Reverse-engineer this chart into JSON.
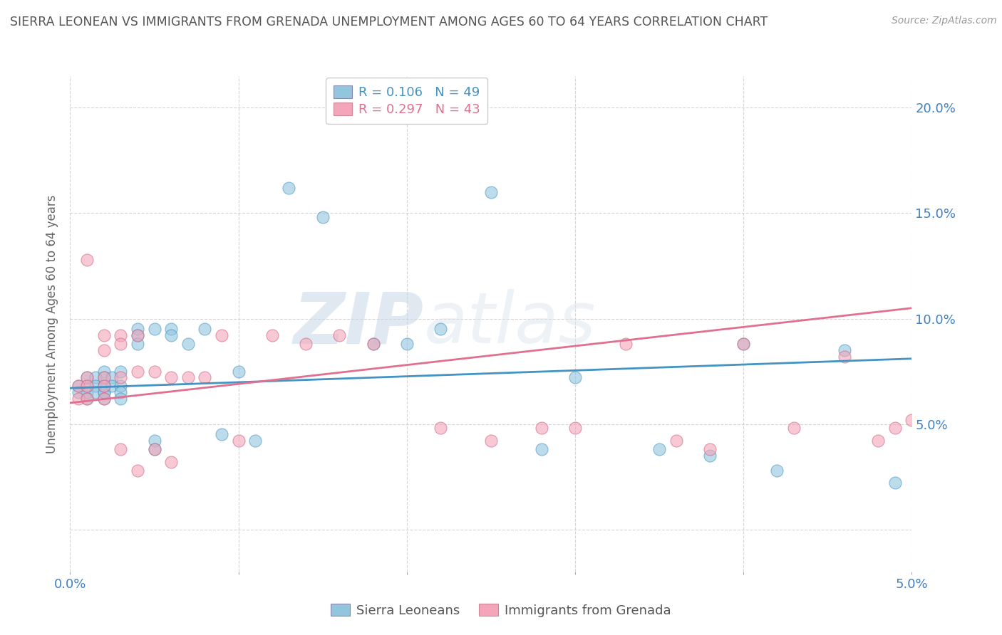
{
  "title": "SIERRA LEONEAN VS IMMIGRANTS FROM GRENADA UNEMPLOYMENT AMONG AGES 60 TO 64 YEARS CORRELATION CHART",
  "source": "Source: ZipAtlas.com",
  "ylabel": "Unemployment Among Ages 60 to 64 years",
  "xlim": [
    0.0,
    0.05
  ],
  "ylim": [
    -0.02,
    0.215
  ],
  "x_ticks": [
    0.0,
    0.01,
    0.02,
    0.03,
    0.04,
    0.05
  ],
  "x_tick_labels": [
    "0.0%",
    "",
    "",
    "",
    "",
    "5.0%"
  ],
  "y_ticks": [
    0.0,
    0.05,
    0.1,
    0.15,
    0.2
  ],
  "y_tick_labels": [
    "",
    "5.0%",
    "10.0%",
    "15.0%",
    "20.0%"
  ],
  "blue_R": 0.106,
  "blue_N": 49,
  "pink_R": 0.297,
  "pink_N": 43,
  "blue_color": "#92c5de",
  "pink_color": "#f4a6b8",
  "blue_line_color": "#4393c3",
  "pink_line_color": "#e07090",
  "legend_label_blue": "Sierra Leoneans",
  "legend_label_pink": "Immigrants from Grenada",
  "blue_scatter_x": [
    0.0005,
    0.0005,
    0.001,
    0.001,
    0.001,
    0.001,
    0.0015,
    0.0015,
    0.0015,
    0.002,
    0.002,
    0.002,
    0.002,
    0.002,
    0.002,
    0.002,
    0.0025,
    0.0025,
    0.003,
    0.003,
    0.003,
    0.003,
    0.004,
    0.004,
    0.004,
    0.005,
    0.005,
    0.005,
    0.006,
    0.006,
    0.007,
    0.008,
    0.009,
    0.01,
    0.011,
    0.013,
    0.015,
    0.018,
    0.02,
    0.022,
    0.025,
    0.028,
    0.03,
    0.035,
    0.038,
    0.04,
    0.042,
    0.046,
    0.049
  ],
  "blue_scatter_y": [
    0.068,
    0.065,
    0.072,
    0.068,
    0.065,
    0.062,
    0.072,
    0.068,
    0.065,
    0.075,
    0.072,
    0.068,
    0.065,
    0.062,
    0.068,
    0.065,
    0.072,
    0.068,
    0.075,
    0.068,
    0.065,
    0.062,
    0.095,
    0.092,
    0.088,
    0.095,
    0.042,
    0.038,
    0.095,
    0.092,
    0.088,
    0.095,
    0.045,
    0.075,
    0.042,
    0.162,
    0.148,
    0.088,
    0.088,
    0.095,
    0.16,
    0.038,
    0.072,
    0.038,
    0.035,
    0.088,
    0.028,
    0.085,
    0.022
  ],
  "pink_scatter_x": [
    0.0005,
    0.0005,
    0.001,
    0.001,
    0.001,
    0.001,
    0.002,
    0.002,
    0.002,
    0.002,
    0.002,
    0.003,
    0.003,
    0.003,
    0.003,
    0.004,
    0.004,
    0.004,
    0.005,
    0.005,
    0.006,
    0.006,
    0.007,
    0.008,
    0.009,
    0.01,
    0.012,
    0.014,
    0.016,
    0.018,
    0.022,
    0.025,
    0.028,
    0.03,
    0.033,
    0.036,
    0.038,
    0.04,
    0.043,
    0.046,
    0.048,
    0.049,
    0.05
  ],
  "pink_scatter_y": [
    0.068,
    0.062,
    0.128,
    0.072,
    0.068,
    0.062,
    0.092,
    0.085,
    0.072,
    0.068,
    0.062,
    0.092,
    0.088,
    0.072,
    0.038,
    0.092,
    0.075,
    0.028,
    0.075,
    0.038,
    0.072,
    0.032,
    0.072,
    0.072,
    0.092,
    0.042,
    0.092,
    0.088,
    0.092,
    0.088,
    0.048,
    0.042,
    0.048,
    0.048,
    0.088,
    0.042,
    0.038,
    0.088,
    0.048,
    0.082,
    0.042,
    0.048,
    0.052
  ],
  "blue_trendline_x": [
    0.0,
    0.05
  ],
  "blue_trendline_y": [
    0.067,
    0.081
  ],
  "pink_trendline_x": [
    0.0,
    0.05
  ],
  "pink_trendline_y": [
    0.06,
    0.105
  ],
  "watermark_zip": "ZIP",
  "watermark_atlas": "atlas",
  "background_color": "#ffffff",
  "grid_color": "#d0d0d0"
}
